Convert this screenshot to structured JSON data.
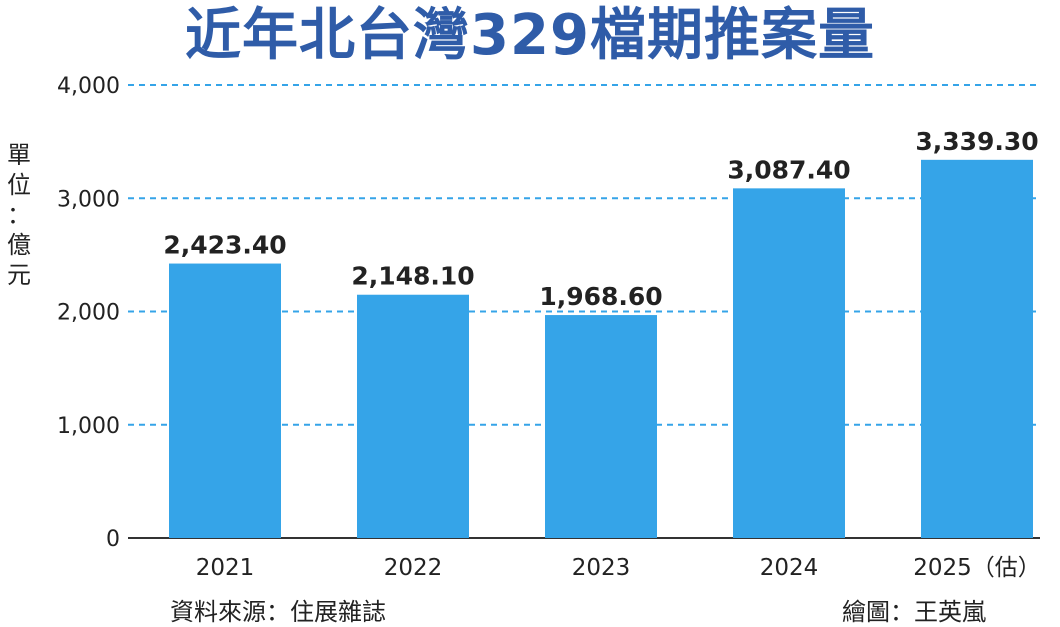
{
  "title": "近年北台灣329檔期推案量",
  "unit_label": [
    "單",
    "位",
    "：",
    "億",
    "元"
  ],
  "source": "資料來源：住展雜誌",
  "credit": "繪圖：王英嵐",
  "colors": {
    "bar": "#35a4e8",
    "grid": "#35a4e8",
    "title": "#2f5ca8"
  },
  "chart_data": {
    "type": "bar",
    "categories": [
      "2021",
      "2022",
      "2023",
      "2024",
      "2025（估）"
    ],
    "values": [
      2423.4,
      2148.1,
      1968.6,
      3087.4,
      3339.3
    ],
    "value_labels": [
      "2,423.40",
      "2,148.10",
      "1,968.60",
      "3,087.40",
      "3,339.30"
    ],
    "yticks": [
      0,
      1000,
      2000,
      3000,
      4000
    ],
    "ytick_labels": [
      "0",
      "1,000",
      "2,000",
      "3,000",
      "4,000"
    ],
    "ylim": [
      0,
      4000
    ],
    "grid": true
  }
}
